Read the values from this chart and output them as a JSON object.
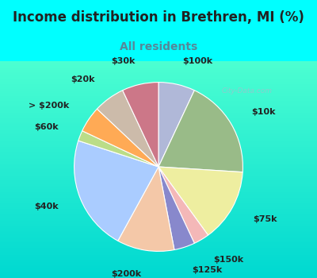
{
  "title": "Income distribution in Brethren, MI (%)",
  "subtitle": "All residents",
  "background_color": "#00FFFF",
  "chart_bg_start": "#e8f5ee",
  "chart_bg_end": "#d0eedd",
  "watermark": "City-Data.com",
  "slices": [
    {
      "label": "$100k",
      "value": 7,
      "color": "#b0b8d8"
    },
    {
      "label": "$10k",
      "value": 19,
      "color": "#99bb88"
    },
    {
      "label": "$75k",
      "value": 14,
      "color": "#eeeea0"
    },
    {
      "label": "$150k",
      "value": 3,
      "color": "#f4b8b8"
    },
    {
      "label": "$125k",
      "value": 4,
      "color": "#8888cc"
    },
    {
      "label": "$200k",
      "value": 11,
      "color": "#f4c8a8"
    },
    {
      "label": "$40k",
      "value": 22,
      "color": "#aaccff"
    },
    {
      "label": "$60k",
      "value": 2,
      "color": "#bbdd88"
    },
    {
      "label": "> $200k",
      "value": 5,
      "color": "#ffaa55"
    },
    {
      "label": "$20k",
      "value": 6,
      "color": "#ccbbaa"
    },
    {
      "label": "$30k",
      "value": 7,
      "color": "#cc7788"
    }
  ],
  "label_fontsize": 8,
  "title_fontsize": 12,
  "subtitle_fontsize": 10,
  "title_color": "#222222",
  "subtitle_color": "#558899"
}
